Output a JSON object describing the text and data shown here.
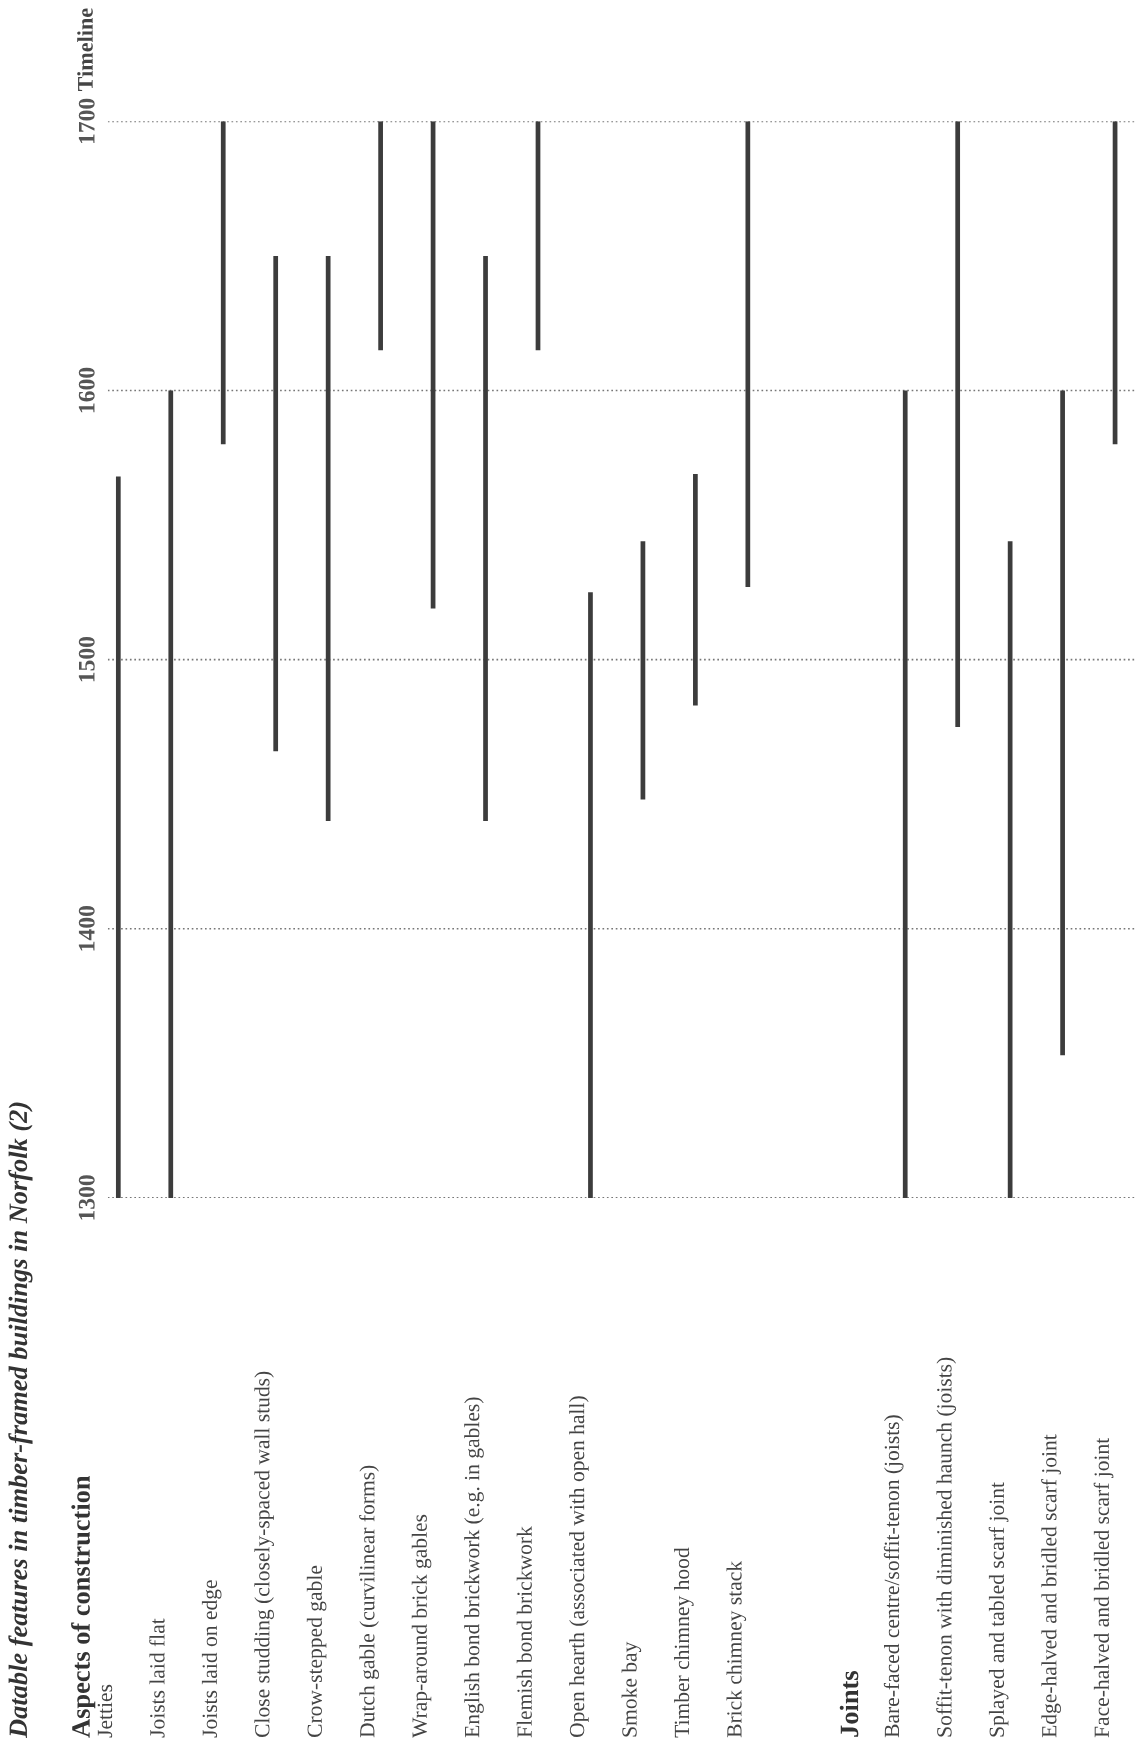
{
  "chart_data": {
    "type": "bar",
    "title": "Datable features in timber-framed buildings in Norfolk (2)",
    "ylabel": "Timeline",
    "annotations": [
      "Aspects of construction",
      "Joints"
    ],
    "categories": [
      "Jetties",
      "Joists laid flat",
      "Joists laid on edge",
      "Close studding (closely-spaced wall studs)",
      "Crow-stepped gable",
      "Dutch gable (curvilinear forms)",
      "Wrap-around brick gables",
      "English bond brickwork (e.g. in gables)",
      "Flemish bond brickwork",
      "Open hearth (associated with open hall)",
      "Smoke bay",
      "Timber chimney hood",
      "Brick chimney stack",
      null,
      null,
      "Bare-faced centre/soffit-tenon (joists)",
      "Soffit-tenon with diminished haunch (joists)",
      "Splayed and tabled scarf joint",
      "Edge-halved and bridled scarf joint",
      "Face-halved and bridled scarf joint"
    ],
    "base": [
      1300,
      1300,
      1580,
      1466,
      1440,
      1615,
      1519,
      1440,
      1615,
      1300,
      1448,
      1483,
      1527,
      null,
      null,
      1300,
      1475,
      1300,
      1353,
      1580
    ],
    "values": [
      268,
      300,
      120,
      184,
      210,
      85,
      181,
      210,
      85,
      225,
      96,
      86,
      173,
      null,
      null,
      300,
      225,
      244,
      247,
      120
    ],
    "color": "#3c3c3c",
    "ylim": [
      1300,
      1700
    ],
    "yticks": [
      1300,
      1400,
      1500,
      1600,
      1700
    ],
    "grid": "y"
  }
}
